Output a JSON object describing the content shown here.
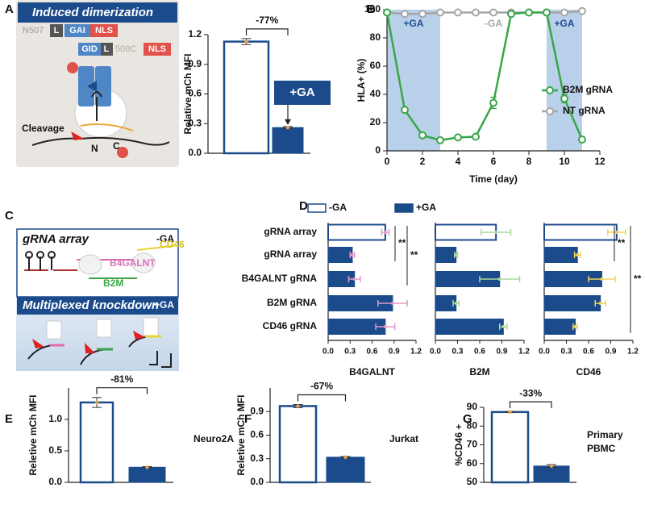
{
  "panel_letters": [
    "A",
    "B",
    "C",
    "D",
    "E",
    "F",
    "G"
  ],
  "diagrams": {
    "A": {
      "title": "Induced dimerization",
      "row1": [
        "N507",
        "L",
        "GAI",
        "NLS"
      ],
      "row2": [
        "GID",
        "L",
        "508C",
        "NLS"
      ],
      "cleavage": "Cleavage",
      "n": "N",
      "c": "C"
    },
    "C": {
      "top_title": "gRNA array",
      "top_state": "-GA",
      "genes": [
        "B4GALNT",
        "CD46",
        "B2M"
      ],
      "bottom_title": "Multiplexed knockdown",
      "bottom_state": "+GA"
    }
  },
  "chart_data": [
    {
      "type": "bar",
      "ylabel": "Relative mCh MFI",
      "categories": [
        null,
        null
      ],
      "values": [
        1.13,
        0.26
      ],
      "errors": [
        0.03,
        0.01
      ],
      "styles": [
        "open",
        "filled"
      ],
      "color": "#1c4b8c",
      "error_color": "#e3a04a",
      "ylim": [
        0,
        1.2
      ],
      "yticks": [
        {
          "value": 0,
          "label": "0.0"
        },
        0.3,
        0.6,
        0.9,
        1.2
      ],
      "bracket_label": "-77%",
      "box_label": "+GA"
    },
    {
      "type": "line",
      "xlabel": "Time (day)",
      "ylabel": "HLA+ (%)",
      "x": [
        0,
        1,
        2,
        3,
        4,
        5,
        6,
        7,
        8,
        9,
        10,
        11
      ],
      "series": [
        {
          "name": "B2M gRNA",
          "color": "#3aa648",
          "values": [
            98,
            29,
            11,
            7.5,
            9.5,
            10,
            34,
            97,
            98,
            98,
            37,
            8
          ],
          "errors": [
            null,
            null,
            null,
            null,
            null,
            null,
            4,
            null,
            null,
            null,
            3,
            null
          ]
        },
        {
          "name": "NT gRNA",
          "color": "#a6a6a6",
          "values": [
            98,
            97,
            97,
            98,
            98,
            98,
            98,
            98,
            98,
            98,
            98,
            99
          ]
        }
      ],
      "xlim": [
        0,
        12
      ],
      "xticks": [
        0,
        2,
        4,
        6,
        8,
        10,
        12
      ],
      "ylim": [
        0,
        100
      ],
      "yticks": [
        0,
        20,
        40,
        60,
        80,
        100
      ],
      "shaded": [
        [
          0,
          3
        ],
        [
          9,
          11
        ]
      ],
      "shade_color": "#b9d0ea",
      "region_labels": [
        "+GA",
        "-GA",
        "+GA"
      ],
      "region_colors": [
        "#1c4b8c",
        "#a6a6a6",
        "#1c4b8c"
      ],
      "legend": "right"
    },
    {
      "type": "hbar-group",
      "categories": [
        "gRNA array",
        "gRNA array",
        "B4GALNT gRNA",
        "B2M gRNA",
        "CD46 gRNA"
      ],
      "series": [
        {
          "name": "-GA",
          "style": "open"
        },
        {
          "name": "+GA",
          "style": "filled"
        }
      ],
      "color": "#1c4b8c",
      "xlim": [
        0,
        1.2
      ],
      "xticks": [
        {
          "value": 0,
          "label": "0.0"
        },
        0.3,
        0.6,
        0.9,
        1.2
      ],
      "subplots": [
        {
          "xlabel": "B4GALNT",
          "error_color": "#e29ac4",
          "values": [
            [
              0.78,
              null,
              null,
              null,
              null
            ],
            [
              null,
              0.33,
              0.36,
              0.88,
              0.78
            ]
          ],
          "errors": [
            [
              0.05,
              null,
              null,
              null,
              null
            ],
            [
              null,
              0.03,
              0.08,
              0.2,
              0.13
            ]
          ],
          "significance": [
            {
              "label": "**",
              "rows": [
                0,
                1
              ]
            },
            {
              "label": "**",
              "rows": [
                0,
                2
              ]
            }
          ]
        },
        {
          "xlabel": "B2M",
          "error_color": "#a9d6a0",
          "values": [
            [
              0.82,
              null,
              null,
              null,
              null
            ],
            [
              null,
              0.28,
              0.87,
              0.28,
              0.92
            ]
          ],
          "errors": [
            [
              0.2,
              null,
              null,
              null,
              null
            ],
            [
              null,
              0.02,
              0.27,
              0.04,
              0.05
            ]
          ],
          "significance": []
        },
        {
          "xlabel": "CD46",
          "error_color": "#efd35a",
          "values": [
            [
              0.98,
              null,
              null,
              null,
              null
            ],
            [
              null,
              0.45,
              0.78,
              0.76,
              0.42
            ]
          ],
          "errors": [
            [
              0.12,
              null,
              null,
              null,
              null
            ],
            [
              null,
              0.04,
              0.18,
              0.07,
              0.03
            ]
          ],
          "significance": [
            {
              "label": "**",
              "rows": [
                0,
                1
              ]
            },
            {
              "label": "**",
              "rows": [
                0,
                4
              ]
            }
          ]
        }
      ]
    },
    {
      "type": "bar",
      "ylabel": "Reletive mCh MFI",
      "categories": [
        null,
        null
      ],
      "values": [
        1.27,
        0.24
      ],
      "errors": [
        0.08,
        0.01
      ],
      "styles": [
        "open",
        "filled"
      ],
      "color": "#1c4b8c",
      "error_color": "#e3a04a",
      "ylim": [
        0,
        1.5
      ],
      "yticks": [
        {
          "value": 0,
          "label": "0.0"
        },
        0.5,
        {
          "value": 1,
          "label": "1.0"
        }
      ],
      "bracket_label": "-81%",
      "note": [
        "Neuro2A"
      ]
    },
    {
      "type": "bar",
      "ylabel": "Reletive mCh MFI",
      "categories": [
        null,
        null
      ],
      "values": [
        0.97,
        0.32
      ],
      "errors": [
        0.02,
        0.01
      ],
      "styles": [
        "open",
        "filled"
      ],
      "color": "#1c4b8c",
      "error_color": "#e3a04a",
      "ylim": [
        0,
        1.2
      ],
      "yticks": [
        {
          "value": 0,
          "label": "0.0"
        },
        0.3,
        0.6,
        0.9
      ],
      "bracket_label": "-67%",
      "note": [
        "Jurkat"
      ]
    },
    {
      "type": "bar",
      "ylabel": "%CD46 +",
      "categories": [
        null,
        null
      ],
      "values": [
        87.5,
        58.7
      ],
      "errors": [
        0.3,
        0.8
      ],
      "styles": [
        "open",
        "filled"
      ],
      "color": "#1c4b8c",
      "error_color": "#e3a04a",
      "ylim": [
        50,
        90
      ],
      "yticks": [
        50,
        60,
        70,
        80,
        90
      ],
      "bracket_label": "-33%",
      "note": [
        "Primary",
        "PBMC"
      ]
    }
  ]
}
